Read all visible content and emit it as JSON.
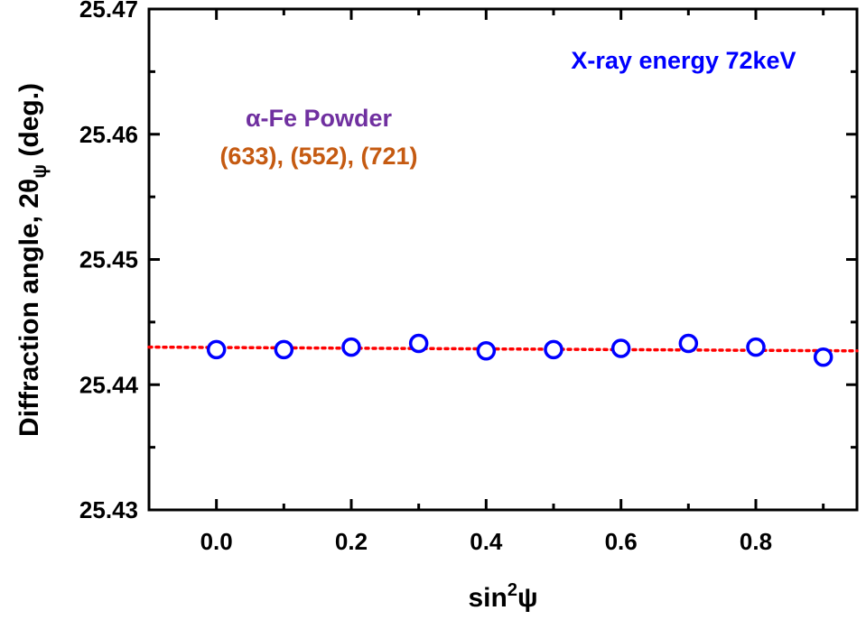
{
  "chart_data": {
    "type": "scatter",
    "title": "",
    "xlabel": {
      "base": "sin",
      "sup": "2",
      "tail": "ψ"
    },
    "ylabel": {
      "base": "Diffraction angle, 2θ",
      "sub": "ψ",
      "tail": " (deg.)"
    },
    "xlim": [
      -0.1,
      0.95
    ],
    "ylim": [
      25.43,
      25.47
    ],
    "xticks": [
      0.0,
      0.2,
      0.4,
      0.6,
      0.8
    ],
    "xtick_labels": [
      "0.0",
      "0.2",
      "0.4",
      "0.6",
      "0.8"
    ],
    "yticks": [
      25.43,
      25.44,
      25.45,
      25.46,
      25.47
    ],
    "ytick_labels": [
      "25.43",
      "25.44",
      "25.45",
      "25.46",
      "25.47"
    ],
    "grid": false,
    "series": [
      {
        "x": [
          0.0,
          0.1,
          0.2,
          0.3,
          0.4,
          0.5,
          0.6,
          0.7,
          0.8,
          0.9
        ],
        "y": [
          25.4428,
          25.4428,
          25.443,
          25.4433,
          25.4427,
          25.4428,
          25.4429,
          25.4433,
          25.443,
          25.4422
        ],
        "marker": "open-circle",
        "color": "#0000ff"
      }
    ],
    "fit_line": {
      "x": [
        -0.1,
        0.95
      ],
      "y": [
        25.443,
        25.4427
      ],
      "style": "dotted",
      "color": "#ff0000"
    },
    "annotations": [
      {
        "text": "X-ray energy 72keV",
        "color": "#0000ff"
      },
      {
        "text": "α-Fe Powder",
        "color": "#7030a0"
      },
      {
        "text": "(633), (552), (721)",
        "color": "#c55a11"
      }
    ]
  }
}
